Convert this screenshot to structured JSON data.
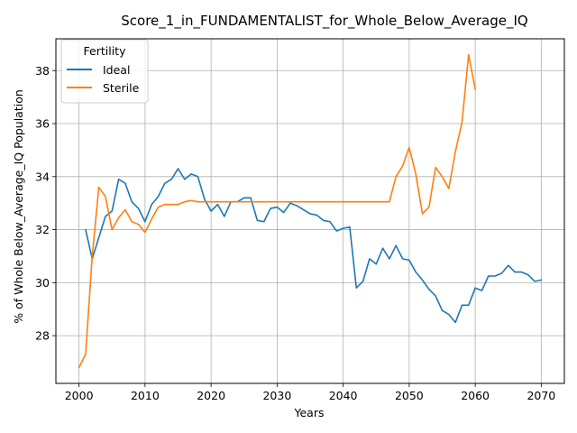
{
  "chart_data": {
    "type": "line",
    "title": "Score_1_in_FUNDAMENTALIST_for_Whole_Below_Average_IQ",
    "xlabel": "Years",
    "ylabel": "% of Whole Below_Average_IQ Population",
    "xlim": [
      1996.5,
      2073.5
    ],
    "ylim": [
      26.2,
      39.2
    ],
    "xticks": [
      2000,
      2010,
      2020,
      2030,
      2040,
      2050,
      2060,
      2070
    ],
    "yticks": [
      28,
      30,
      32,
      34,
      36,
      38
    ],
    "grid": true,
    "legend": {
      "title": "Fertility",
      "placement": "top-left"
    },
    "series": [
      {
        "name": "Ideal",
        "color": "#1f77b4",
        "x": [
          2001,
          2002,
          2003,
          2004,
          2005,
          2006,
          2007,
          2008,
          2009,
          2010,
          2011,
          2012,
          2013,
          2014,
          2015,
          2016,
          2017,
          2018,
          2019,
          2020,
          2021,
          2022,
          2023,
          2024,
          2025,
          2026,
          2027,
          2028,
          2029,
          2030,
          2031,
          2032,
          2033,
          2034,
          2035,
          2036,
          2037,
          2038,
          2039,
          2040,
          2041,
          2042,
          2043,
          2044,
          2045,
          2046,
          2047,
          2048,
          2049,
          2050,
          2051,
          2052,
          2053,
          2054,
          2055,
          2056,
          2057,
          2058,
          2059,
          2060,
          2061,
          2062,
          2063,
          2064,
          2065,
          2066,
          2067,
          2068,
          2069,
          2070
        ],
        "values": [
          32.0,
          30.9,
          31.7,
          32.5,
          32.7,
          33.9,
          33.75,
          33.05,
          32.8,
          32.3,
          32.95,
          33.25,
          33.75,
          33.9,
          34.3,
          33.9,
          34.1,
          34.0,
          33.15,
          32.7,
          32.95,
          32.5,
          33.05,
          33.05,
          33.2,
          33.2,
          32.35,
          32.3,
          32.8,
          32.85,
          32.65,
          33.0,
          32.9,
          32.75,
          32.6,
          32.55,
          32.35,
          32.3,
          31.95,
          32.05,
          32.1,
          29.8,
          30.05,
          30.9,
          30.7,
          31.3,
          30.9,
          31.4,
          30.9,
          30.85,
          30.4,
          30.1,
          29.75,
          29.5,
          28.95,
          28.8,
          28.5,
          29.15,
          29.15,
          29.8,
          29.7,
          30.25,
          30.25,
          30.35,
          30.65,
          30.4,
          30.4,
          30.3,
          30.05,
          30.1
        ]
      },
      {
        "name": "Sterile",
        "color": "#ff7f0e",
        "x": [
          2000,
          2001,
          2002,
          2003,
          2004,
          2005,
          2006,
          2007,
          2008,
          2009,
          2010,
          2011,
          2012,
          2013,
          2014,
          2015,
          2016,
          2017,
          2018,
          2019,
          2020,
          2021,
          2022,
          2023,
          2024,
          2025,
          2026,
          2027,
          2028,
          2029,
          2030,
          2031,
          2032,
          2033,
          2034,
          2035,
          2036,
          2037,
          2038,
          2039,
          2040,
          2041,
          2042,
          2043,
          2044,
          2045,
          2046,
          2047,
          2048,
          2049,
          2050,
          2051,
          2052,
          2053,
          2054,
          2055,
          2056,
          2057,
          2058,
          2059,
          2060
        ],
        "values": [
          26.8,
          27.3,
          31.0,
          33.6,
          33.25,
          32.0,
          32.45,
          32.75,
          32.3,
          32.2,
          31.9,
          32.4,
          32.85,
          32.95,
          32.95,
          32.95,
          33.05,
          33.1,
          33.05,
          33.05,
          33.05,
          33.05,
          33.05,
          33.05,
          33.05,
          33.05,
          33.05,
          33.05,
          33.05,
          33.05,
          33.05,
          33.05,
          33.05,
          33.05,
          33.05,
          33.05,
          33.05,
          33.05,
          33.05,
          33.05,
          33.05,
          33.05,
          33.05,
          33.05,
          33.05,
          33.05,
          33.05,
          33.05,
          34.0,
          34.4,
          35.1,
          34.1,
          32.6,
          32.85,
          34.35,
          34.0,
          33.55,
          34.95,
          36.05,
          38.6,
          37.3
        ]
      }
    ]
  }
}
